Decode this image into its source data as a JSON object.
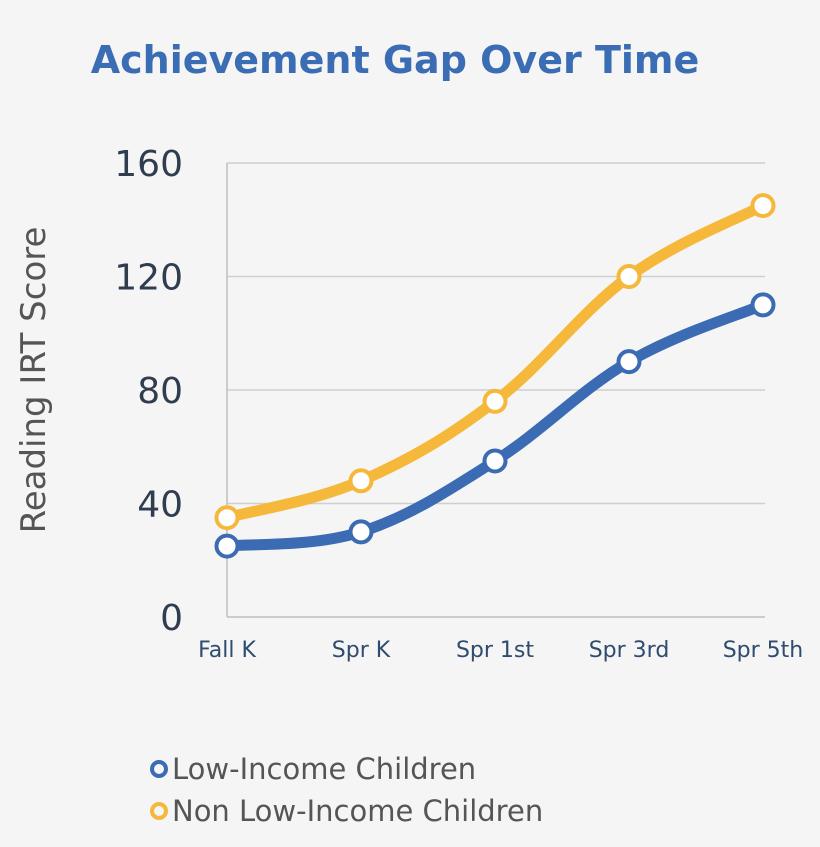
{
  "chart_data": {
    "type": "line",
    "title": "Achievement Gap Over Time",
    "xlabel": "",
    "ylabel": "Reading IRT Score",
    "categories": [
      "Fall K",
      "Spr K",
      "Spr 1st",
      "Spr 3rd",
      "Spr 5th"
    ],
    "ylim": [
      0,
      160
    ],
    "yticks": [
      0,
      40,
      80,
      120,
      160
    ],
    "grid": true,
    "legend_position": "bottom-left",
    "series": [
      {
        "name": "Low-Income Children",
        "color": "#3b6bb3",
        "values": [
          25,
          30,
          55,
          90,
          110
        ]
      },
      {
        "name": "Non Low-Income Children",
        "color": "#f6b83a",
        "values": [
          35,
          48,
          76,
          120,
          145
        ]
      }
    ]
  }
}
